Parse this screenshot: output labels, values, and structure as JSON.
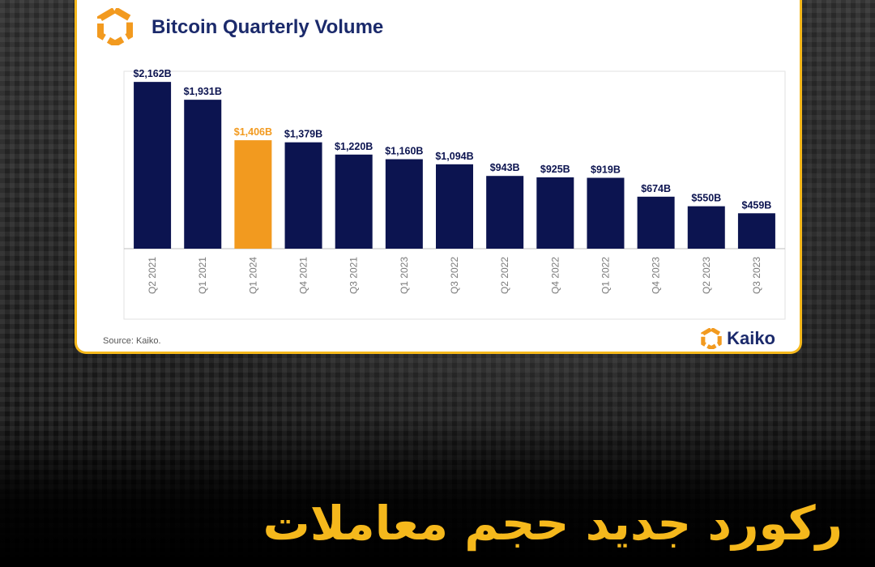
{
  "header": {
    "title": "Bitcoin Quarterly Volume"
  },
  "footer": {
    "source": "Source: Kaiko.",
    "brand": "Kaiko"
  },
  "caption": "رکورد جدید حجم معاملات",
  "colors": {
    "bar": "#0c1450",
    "highlight": "#f29a1f",
    "title": "#1b2a6b",
    "border": "#f5b81c"
  },
  "chart_data": {
    "type": "bar",
    "title": "Bitcoin Quarterly Volume",
    "xlabel": "",
    "ylabel": "",
    "ylim": [
      0,
      2300
    ],
    "grid": false,
    "legend": "none",
    "categories": [
      "Q2 2021",
      "Q1 2021",
      "Q1 2024",
      "Q4 2021",
      "Q3 2021",
      "Q1 2023",
      "Q3 2022",
      "Q2 2022",
      "Q4 2022",
      "Q1 2022",
      "Q4 2023",
      "Q2 2023",
      "Q3 2023"
    ],
    "values": [
      2162,
      1931,
      1406,
      1379,
      1220,
      1160,
      1094,
      943,
      925,
      919,
      674,
      550,
      459
    ],
    "data_labels": [
      "$2,162B",
      "$1,931B",
      "$1,406B",
      "$1,379B",
      "$1,220B",
      "$1,160B",
      "$1,094B",
      "$943B",
      "$925B",
      "$919B",
      "$674B",
      "$550B",
      "$459B"
    ],
    "highlight_index": 2
  }
}
